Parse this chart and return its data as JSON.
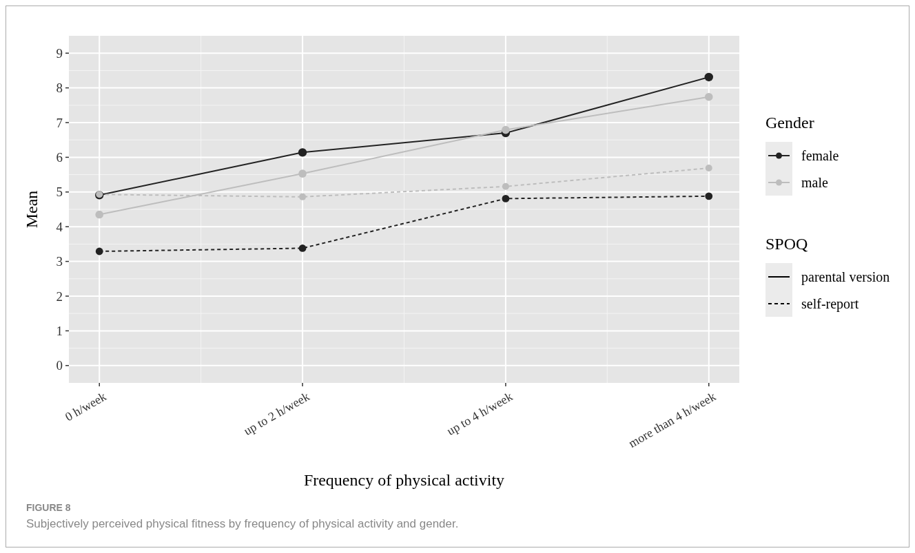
{
  "chart_data": {
    "type": "line",
    "categories": [
      "0 h/week",
      "up to 2 h/week",
      "up to 4 h/week",
      "more than 4 h/week"
    ],
    "xlabel": "Frequency of physical activity",
    "ylabel": "Mean",
    "ylim": [
      -0.5,
      9.5
    ],
    "yticks": [
      0,
      1,
      2,
      3,
      4,
      5,
      6,
      7,
      8,
      9
    ],
    "grid": true,
    "marker": "circle",
    "legend": "right",
    "legend_title": [
      "Gender",
      "SPOQ"
    ],
    "series": [
      {
        "name": "female",
        "color": "#222222",
        "line_style": "solid",
        "values": [
          4.91,
          6.14,
          6.7,
          8.31
        ]
      },
      {
        "name": "male",
        "color": "#bdbdbd",
        "line_style": "solid",
        "values": [
          4.35,
          5.53,
          6.79,
          7.74
        ]
      },
      {
        "color": "#222222",
        "line_style": "dashed",
        "values": [
          3.29,
          3.38,
          4.81,
          4.88
        ]
      },
      {
        "color": "#bdbdbd",
        "line_style": "dashed",
        "values": [
          4.93,
          4.86,
          5.16,
          5.69
        ]
      }
    ],
    "annotations": [
      "FIGURE 8",
      "Subjectively perceived physical fitness by frequency of physical activity and gender.",
      "parental version",
      "self-report"
    ]
  }
}
